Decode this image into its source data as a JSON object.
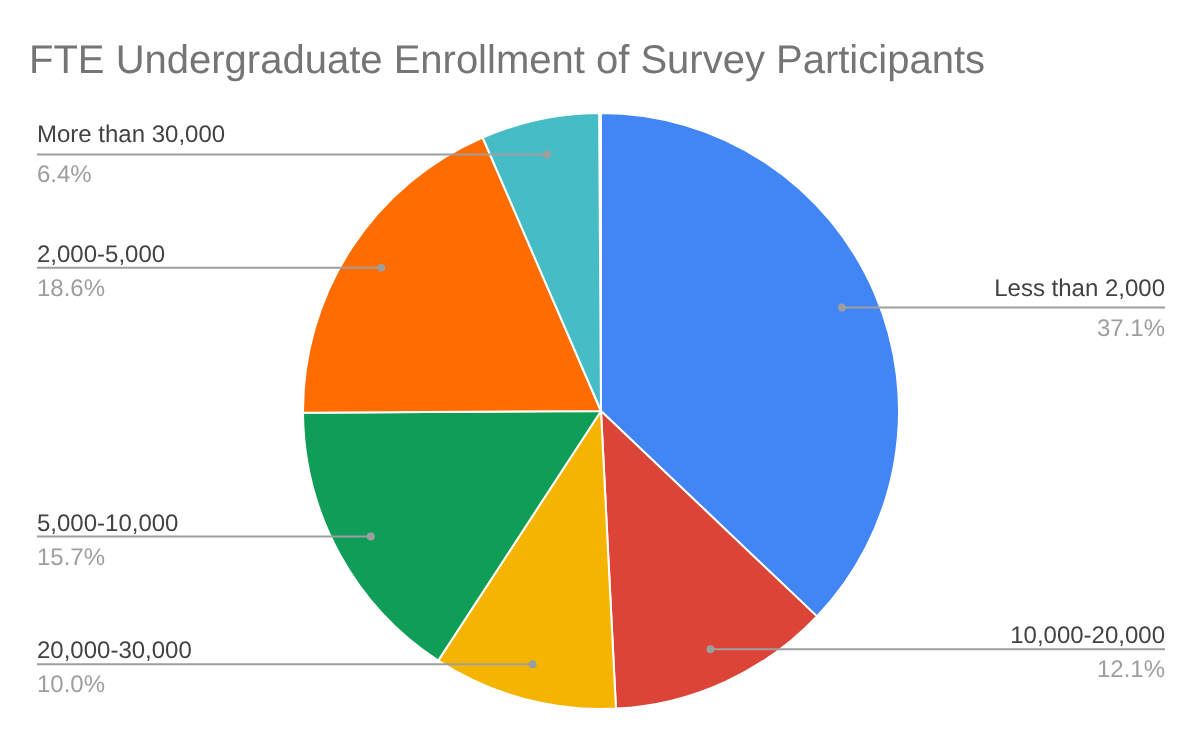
{
  "chart_data": {
    "type": "pie",
    "title": "FTE Undergraduate Enrollment of Survey Participants",
    "categories": [
      "Less than 2,000",
      "10,000-20,000",
      "20,000-30,000",
      "5,000-10,000",
      "2,000-5,000",
      "More than 30,000"
    ],
    "values": [
      37.1,
      12.1,
      10.0,
      15.7,
      18.6,
      6.4
    ],
    "colors": [
      "#4285f4",
      "#db4437",
      "#f4b400",
      "#0f9d58",
      "#ff6d00",
      "#46bdc6"
    ],
    "value_labels": [
      "37.1%",
      "12.1%",
      "10.0%",
      "15.7%",
      "18.6%",
      "6.4%"
    ]
  }
}
